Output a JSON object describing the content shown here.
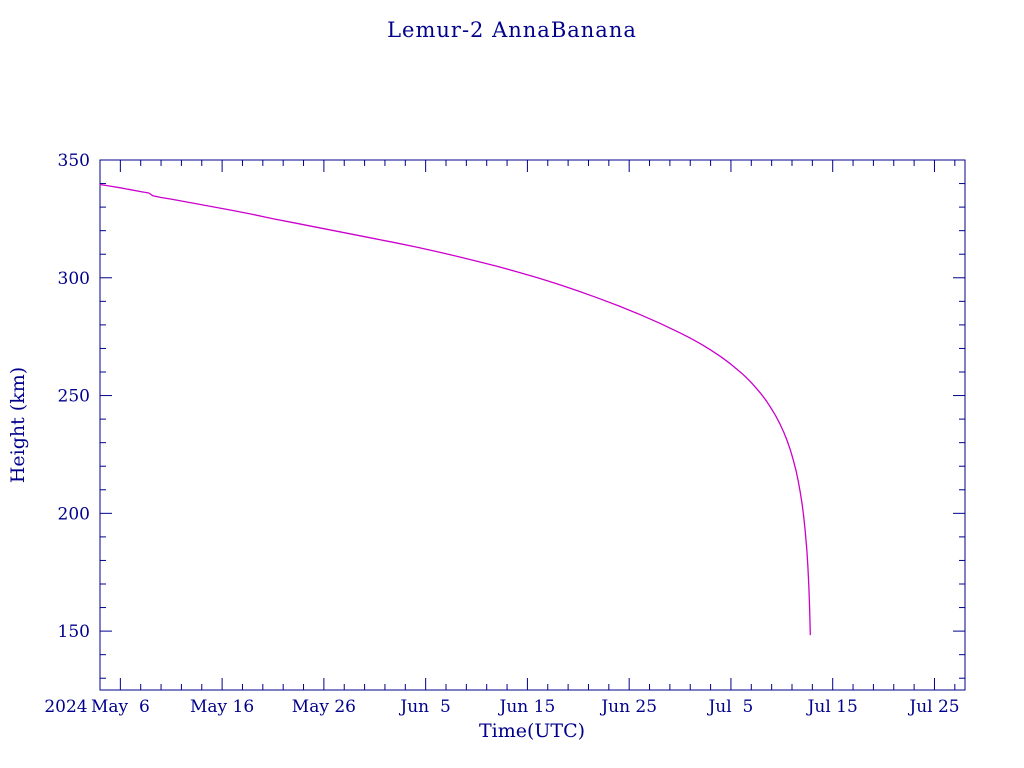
{
  "colors": {
    "background": "#ffffff",
    "text": "#00008b",
    "axis": "#00008b",
    "curve": "#cc00cc"
  },
  "chart_data": {
    "type": "line",
    "title": "Lemur-2 AnnaBanana",
    "xlabel": "Time(UTC)",
    "ylabel": "Height (km)",
    "year_label": "2024",
    "x_unit": "days since 2024-05-04 UTC",
    "xlim": [
      0,
      85
    ],
    "ylim": [
      125,
      350
    ],
    "x_minor_step": 2,
    "y_minor_step": 10,
    "x_major_ticks": [
      2,
      12,
      22,
      32,
      42,
      52,
      62,
      72,
      82
    ],
    "x_tick_labels": [
      "May  6",
      "May 16",
      "May 26",
      "Jun  5",
      "Jun 15",
      "Jun 25",
      "Jul  5",
      "Jul 15",
      "Jul 25"
    ],
    "y_major_ticks": [
      150,
      200,
      250,
      300,
      350
    ],
    "y_tick_labels": [
      "150",
      "200",
      "250",
      "300",
      "350"
    ],
    "grid": false,
    "legend": "none",
    "series": [
      {
        "name": "orbital-height",
        "color": "#cc00cc",
        "points": [
          [
            0,
            339.6
          ],
          [
            1,
            338.9
          ],
          [
            2,
            338.2
          ],
          [
            3,
            337.4
          ],
          [
            4,
            336.6
          ],
          [
            4.8,
            336.0
          ],
          [
            5.2,
            334.8
          ],
          [
            6,
            334.1
          ],
          [
            7,
            333.4
          ],
          [
            9,
            331.8
          ],
          [
            11,
            330.2
          ],
          [
            13,
            328.6
          ],
          [
            15,
            326.9
          ],
          [
            17,
            325.1
          ],
          [
            19,
            323.4
          ],
          [
            21,
            321.7
          ],
          [
            23,
            320.0
          ],
          [
            25,
            318.3
          ],
          [
            27,
            316.6
          ],
          [
            29,
            314.9
          ],
          [
            31,
            313.1
          ],
          [
            33,
            311.2
          ],
          [
            35,
            309.2
          ],
          [
            37,
            307.1
          ],
          [
            39,
            304.9
          ],
          [
            41,
            302.5
          ],
          [
            43,
            300.0
          ],
          [
            45,
            297.3
          ],
          [
            47,
            294.4
          ],
          [
            49,
            291.3
          ],
          [
            51,
            288.0
          ],
          [
            53,
            284.5
          ],
          [
            55,
            280.7
          ],
          [
            57,
            276.6
          ],
          [
            58,
            274.4
          ],
          [
            59,
            272.0
          ],
          [
            60,
            269.4
          ],
          [
            61,
            266.5
          ],
          [
            62,
            263.3
          ],
          [
            63,
            259.7
          ],
          [
            63.5,
            257.7
          ],
          [
            64,
            255.5
          ],
          [
            64.5,
            253.1
          ],
          [
            65,
            250.5
          ],
          [
            65.5,
            247.6
          ],
          [
            66,
            244.3
          ],
          [
            66.4,
            241.4
          ],
          [
            66.8,
            238.1
          ],
          [
            67.2,
            234.3
          ],
          [
            67.5,
            231.1
          ],
          [
            67.8,
            227.4
          ],
          [
            68.1,
            223.1
          ],
          [
            68.4,
            218.0
          ],
          [
            68.6,
            214.0
          ],
          [
            68.8,
            209.3
          ],
          [
            69,
            203.7
          ],
          [
            69.15,
            198.7
          ],
          [
            69.3,
            192.5
          ],
          [
            69.45,
            184.6
          ],
          [
            69.55,
            178.0
          ],
          [
            69.65,
            169.4
          ],
          [
            69.72,
            161.4
          ],
          [
            69.78,
            152.0
          ],
          [
            69.8,
            148.5
          ]
        ]
      }
    ]
  }
}
